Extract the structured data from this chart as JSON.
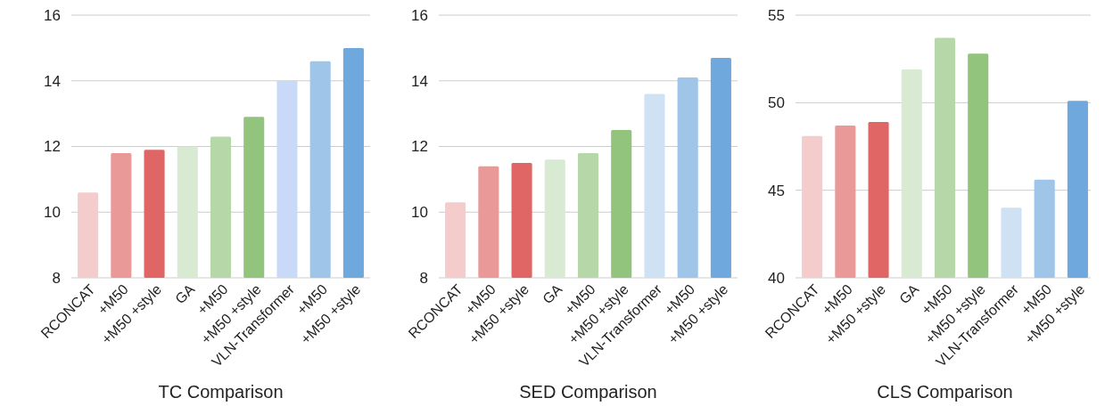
{
  "chart_data": [
    {
      "type": "bar",
      "xlabel": "TC Comparison",
      "categories": [
        "RCONCAT",
        "+M50",
        "+M50 +style",
        "GA",
        "+M50",
        "+M50 +style",
        "VLN-Transformer",
        "+M50",
        "+M50 +style"
      ],
      "values": [
        10.6,
        11.8,
        11.9,
        12.0,
        12.3,
        12.9,
        14.0,
        14.6,
        15.0
      ],
      "colors": [
        "#f4cccc",
        "#ea9999",
        "#e06666",
        "#d9ead3",
        "#b6d7a8",
        "#93c47d",
        "#c9daf8",
        "#9fc5e8",
        "#6fa8dc"
      ],
      "ylim": [
        8,
        16
      ],
      "yticks": [
        8,
        10,
        12,
        14,
        16
      ],
      "grid": "y"
    },
    {
      "type": "bar",
      "xlabel": "SED Comparison",
      "categories": [
        "RCONCAT",
        "+M50",
        "+M50 +style",
        "GA",
        "+M50",
        "+M50 +style",
        "VLN-Transformer",
        "+M50",
        "+M50 +style"
      ],
      "values": [
        10.3,
        11.4,
        11.5,
        11.6,
        11.8,
        12.5,
        13.6,
        14.1,
        14.7
      ],
      "colors": [
        "#f4cccc",
        "#ea9999",
        "#e06666",
        "#d9ead3",
        "#b6d7a8",
        "#93c47d",
        "#cfe2f3",
        "#9fc5e8",
        "#6fa8dc"
      ],
      "ylim": [
        8,
        16
      ],
      "yticks": [
        8,
        10,
        12,
        14,
        16
      ],
      "grid": "y"
    },
    {
      "type": "bar",
      "xlabel": "CLS Comparison",
      "categories": [
        "RCONCAT",
        "+M50",
        "+M50 +style",
        "GA",
        "+M50",
        "+M50 +style",
        "VLN-Transformer",
        "+M50",
        "+M50 +style"
      ],
      "values": [
        48.1,
        48.7,
        48.9,
        51.9,
        53.7,
        52.8,
        44.0,
        45.6,
        50.1
      ],
      "colors": [
        "#f4cccc",
        "#ea9999",
        "#e06666",
        "#d9ead3",
        "#b6d7a8",
        "#93c47d",
        "#cfe2f3",
        "#9fc5e8",
        "#6fa8dc"
      ],
      "ylim": [
        40,
        55
      ],
      "yticks": [
        40,
        45,
        50,
        55
      ],
      "grid": "y"
    }
  ]
}
